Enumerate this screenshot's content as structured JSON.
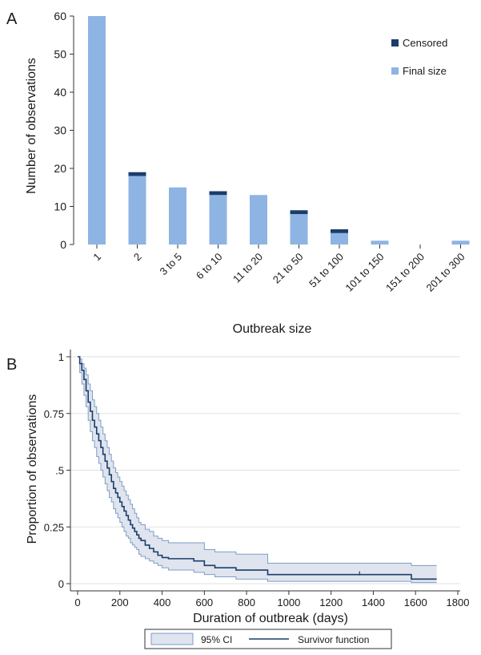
{
  "chart_data": [
    {
      "panel_label": "A",
      "type": "bar",
      "stacked": true,
      "categories": [
        "1",
        "2",
        "3 to 5",
        "6 to 10",
        "11 to 20",
        "21 to 50",
        "51 to 100",
        "101 to 150",
        "151 to 200",
        "201 to 300"
      ],
      "series": [
        {
          "name": "Final size",
          "color": "#8eb4e3",
          "values": [
            60,
            18,
            15,
            13,
            13,
            8,
            3,
            1,
            0,
            1
          ]
        },
        {
          "name": "Censored",
          "color": "#1c3d6b",
          "values": [
            0,
            1,
            0,
            1,
            0,
            1,
            1,
            0,
            0,
            0
          ]
        }
      ],
      "legend_order": [
        "Censored",
        "Final size"
      ],
      "legend_position": "top-right",
      "xlabel": "Outbreak size",
      "ylabel": "Number of observations",
      "ylim": [
        0,
        60
      ],
      "yticks": [
        "0",
        "10",
        "20",
        "30",
        "40",
        "50",
        "60"
      ],
      "grid": false
    },
    {
      "panel_label": "B",
      "type": "line",
      "subtype": "step",
      "xlabel": "Duration of outbreak (days)",
      "ylabel": "Proportion of observations",
      "xlim": [
        0,
        1800
      ],
      "ylim": [
        0,
        1
      ],
      "xticks": [
        "0",
        "200",
        "400",
        "600",
        "800",
        "1000",
        "1200",
        "1400",
        "1600",
        "1800"
      ],
      "yticks": [
        {
          "value": 0,
          "label": "0"
        },
        {
          "value": 0.25,
          "label": "0.25"
        },
        {
          "value": 0.5,
          "label": ".5"
        },
        {
          "value": 0.75,
          "label": "0.75"
        },
        {
          "value": 1,
          "label": "1"
        }
      ],
      "grid": true,
      "legend_position": "bottom",
      "series": [
        {
          "name": "Survivor function",
          "color": "#1c3d6b",
          "x": [
            0,
            10,
            20,
            30,
            40,
            50,
            60,
            70,
            80,
            90,
            100,
            110,
            120,
            130,
            140,
            150,
            160,
            170,
            180,
            190,
            200,
            210,
            220,
            230,
            240,
            250,
            260,
            270,
            280,
            290,
            300,
            320,
            340,
            360,
            380,
            400,
            430,
            460,
            500,
            550,
            600,
            650,
            700,
            750,
            800,
            900,
            1000,
            1100,
            1200,
            1300,
            1400,
            1500,
            1580,
            1700
          ],
          "y": [
            1.0,
            0.97,
            0.94,
            0.9,
            0.85,
            0.8,
            0.76,
            0.72,
            0.69,
            0.66,
            0.63,
            0.6,
            0.57,
            0.54,
            0.51,
            0.48,
            0.45,
            0.42,
            0.4,
            0.38,
            0.36,
            0.34,
            0.32,
            0.3,
            0.28,
            0.26,
            0.245,
            0.23,
            0.215,
            0.2,
            0.19,
            0.17,
            0.155,
            0.14,
            0.125,
            0.115,
            0.11,
            0.11,
            0.11,
            0.1,
            0.08,
            0.07,
            0.07,
            0.06,
            0.06,
            0.04,
            0.04,
            0.04,
            0.04,
            0.04,
            0.04,
            0.04,
            0.02,
            0.02
          ]
        }
      ],
      "ci": {
        "name": "95% CI",
        "color": "#dfe4ee",
        "border_color": "#7e9ec6",
        "upper": [
          1.0,
          0.99,
          0.97,
          0.95,
          0.92,
          0.88,
          0.85,
          0.81,
          0.78,
          0.75,
          0.72,
          0.69,
          0.66,
          0.63,
          0.6,
          0.57,
          0.54,
          0.51,
          0.49,
          0.47,
          0.45,
          0.43,
          0.41,
          0.39,
          0.37,
          0.35,
          0.33,
          0.31,
          0.29,
          0.27,
          0.26,
          0.24,
          0.23,
          0.21,
          0.2,
          0.19,
          0.18,
          0.18,
          0.18,
          0.18,
          0.15,
          0.14,
          0.14,
          0.13,
          0.13,
          0.09,
          0.09,
          0.09,
          0.09,
          0.09,
          0.09,
          0.09,
          0.08,
          0.08
        ],
        "lower": [
          1.0,
          0.93,
          0.88,
          0.83,
          0.78,
          0.72,
          0.67,
          0.63,
          0.6,
          0.56,
          0.53,
          0.5,
          0.47,
          0.44,
          0.41,
          0.38,
          0.36,
          0.33,
          0.31,
          0.29,
          0.27,
          0.25,
          0.23,
          0.21,
          0.2,
          0.18,
          0.17,
          0.16,
          0.15,
          0.13,
          0.12,
          0.11,
          0.1,
          0.09,
          0.08,
          0.07,
          0.06,
          0.06,
          0.06,
          0.05,
          0.04,
          0.03,
          0.03,
          0.02,
          0.02,
          0.01,
          0.01,
          0.01,
          0.01,
          0.01,
          0.01,
          0.01,
          0.005,
          0.005
        ]
      },
      "censor_marks": [
        {
          "x": 1335,
          "y": 0.04
        }
      ],
      "legend_items": [
        "95% CI",
        "Survivor function"
      ]
    }
  ]
}
